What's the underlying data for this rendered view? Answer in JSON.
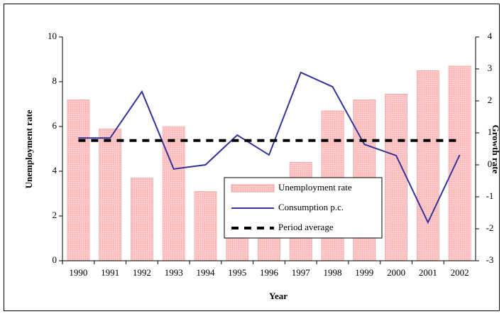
{
  "chart_data": {
    "type": "bar_line",
    "x_label": "Year",
    "y_label": "Unemployment rate",
    "y2_label": "Growth rate",
    "categories": [
      "1990",
      "1991",
      "1992",
      "1993",
      "1994",
      "1995",
      "1996",
      "1997",
      "1998",
      "1999",
      "2000",
      "2001",
      "2002"
    ],
    "ylim": [
      0,
      10
    ],
    "yticks": [
      0,
      2,
      4,
      6,
      8,
      10
    ],
    "y2lim": [
      -3,
      4
    ],
    "y2ticks": [
      -3,
      -2,
      -1,
      0,
      1,
      2,
      3,
      4
    ],
    "series": [
      {
        "name": "Unemployment rate",
        "type": "bar",
        "color": "#ffc0c0",
        "values": [
          7.2,
          5.9,
          3.7,
          6.0,
          3.1,
          3.6,
          3.6,
          4.4,
          6.7,
          7.2,
          7.45,
          8.5,
          8.7
        ]
      },
      {
        "name": "Consumption  p.c.",
        "type": "line",
        "axis": "y2",
        "color": "#333399",
        "values": [
          0.84,
          0.84,
          2.29,
          -0.13,
          0,
          0.93,
          0.31,
          2.89,
          2.44,
          0.64,
          0.29,
          -1.8,
          0.31
        ]
      },
      {
        "name": "Period average",
        "type": "dashed",
        "axis": "y2",
        "color": "#000000",
        "values": [
          0.76,
          0.76,
          0.76,
          0.76,
          0.76,
          0.76,
          0.76,
          0.76,
          0.76,
          0.76,
          0.76,
          0.76,
          0.76
        ]
      }
    ]
  }
}
